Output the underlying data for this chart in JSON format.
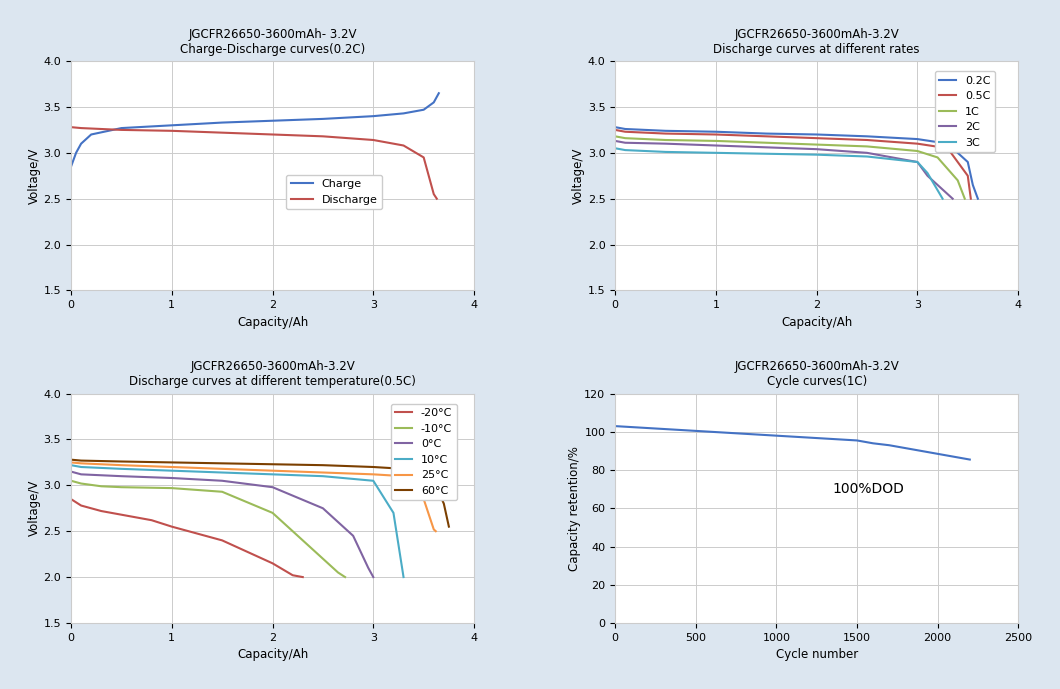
{
  "bg_color": "#dce6f0",
  "panel_bg": "#ffffff",
  "fig_size": [
    10.6,
    6.89
  ],
  "plot1": {
    "title1": "JGCFR26650-3600mAh- 3.2V",
    "title2": "Charge-Discharge curves(0.2C)",
    "xlabel": "Capacity/Ah",
    "ylabel": "Voltage/V",
    "xlim": [
      0,
      4
    ],
    "ylim": [
      1.5,
      4
    ],
    "yticks": [
      1.5,
      2.0,
      2.5,
      3.0,
      3.5,
      4.0
    ],
    "xticks": [
      0,
      1,
      2,
      3,
      4
    ],
    "charge_color": "#4472c4",
    "discharge_color": "#c0504d",
    "legend": [
      "Charge",
      "Discharge"
    ]
  },
  "plot2": {
    "title1": "JGCFR26650-3600mAh-3.2V",
    "title2": "Discharge curves at different rates",
    "xlabel": "Capacity/Ah",
    "ylabel": "Voltage/V",
    "xlim": [
      0,
      4
    ],
    "ylim": [
      1.5,
      4
    ],
    "yticks": [
      1.5,
      2.0,
      2.5,
      3.0,
      3.5,
      4.0
    ],
    "xticks": [
      0,
      1,
      2,
      3,
      4
    ],
    "colors": [
      "#4472c4",
      "#c0504d",
      "#9bbb59",
      "#8064a2",
      "#4bacc6"
    ],
    "labels": [
      "0.2C",
      "0.5C",
      "1C",
      "2C",
      "3C"
    ]
  },
  "plot3": {
    "title1": "JGCFR26650-3600mAh-3.2V",
    "title2": "Discharge curves at different temperature(0.5C)",
    "xlabel": "Capacity/Ah",
    "ylabel": "Voltage/V",
    "xlim": [
      0,
      4
    ],
    "ylim": [
      1.5,
      4
    ],
    "yticks": [
      1.5,
      2.0,
      2.5,
      3.0,
      3.5,
      4.0
    ],
    "xticks": [
      0,
      1,
      2,
      3,
      4
    ],
    "colors": [
      "#c0504d",
      "#9bbb59",
      "#8064a2",
      "#4bacc6",
      "#f79646",
      "#7b3f00"
    ],
    "labels": [
      "-20°C",
      "-10°C",
      "0°C",
      "10°C",
      "25°C",
      "60°C"
    ]
  },
  "plot4": {
    "title1": "JGCFR26650-3600mAh-3.2V",
    "title2": "Cycle curves(1C)",
    "xlabel": "Cycle number",
    "ylabel": "Capacity retention/%",
    "xlim": [
      0,
      2500
    ],
    "ylim": [
      0,
      120
    ],
    "yticks": [
      0,
      20,
      40,
      60,
      80,
      100,
      120
    ],
    "xticks": [
      0,
      500,
      1000,
      1500,
      2000,
      2500
    ],
    "line_color": "#4472c4",
    "annotation": "100%DOD",
    "ann_x": 1350,
    "ann_y": 68
  }
}
